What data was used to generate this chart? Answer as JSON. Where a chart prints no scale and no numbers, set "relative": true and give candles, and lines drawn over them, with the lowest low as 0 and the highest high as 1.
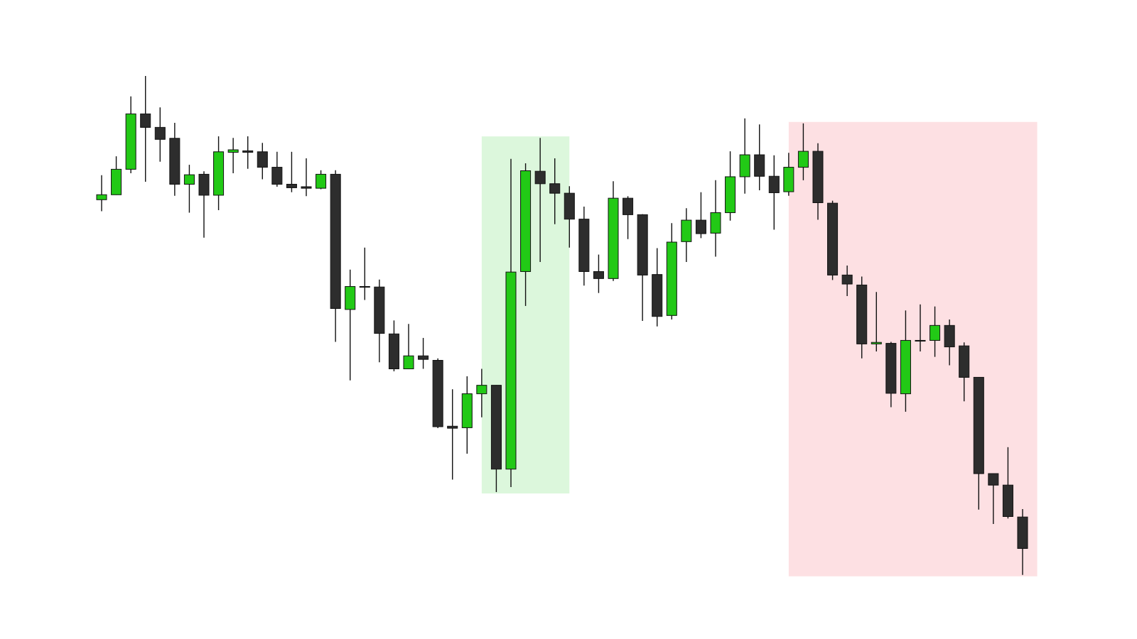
{
  "chart_data": {
    "type": "candlestick",
    "relative": true,
    "categories": [
      null,
      null,
      null,
      null,
      null,
      null,
      null,
      null,
      null,
      null,
      null,
      null,
      null,
      null,
      null,
      null,
      null,
      null,
      null,
      null,
      null,
      null,
      null,
      null,
      null,
      null,
      null,
      null,
      null,
      null,
      null,
      null,
      null,
      null,
      null,
      null,
      null,
      null,
      null,
      null,
      null,
      null,
      null,
      null,
      null,
      null,
      null,
      null,
      null,
      null,
      null,
      null,
      null,
      null,
      null,
      null,
      null,
      null,
      null,
      null,
      null,
      null,
      null,
      null
    ],
    "ohlc": [
      [
        0.752,
        0.801,
        0.729,
        0.762
      ],
      [
        0.762,
        0.839,
        0.762,
        0.813
      ],
      [
        0.813,
        0.959,
        0.805,
        0.924
      ],
      [
        0.924,
        1.0,
        0.788,
        0.897
      ],
      [
        0.897,
        0.937,
        0.828,
        0.873
      ],
      [
        0.875,
        0.906,
        0.76,
        0.783
      ],
      [
        0.783,
        0.822,
        0.726,
        0.802
      ],
      [
        0.803,
        0.809,
        0.676,
        0.761
      ],
      [
        0.761,
        0.879,
        0.731,
        0.848
      ],
      [
        0.847,
        0.876,
        0.805,
        0.852
      ],
      [
        0.85,
        0.879,
        0.814,
        0.847
      ],
      [
        0.848,
        0.866,
        0.793,
        0.817
      ],
      [
        0.817,
        0.848,
        0.778,
        0.783
      ],
      [
        0.783,
        0.848,
        0.767,
        0.776
      ],
      [
        0.778,
        0.835,
        0.759,
        0.775
      ],
      [
        0.775,
        0.811,
        0.773,
        0.803
      ],
      [
        0.803,
        0.811,
        0.467,
        0.534
      ],
      [
        0.532,
        0.612,
        0.39,
        0.578
      ],
      [
        0.578,
        0.656,
        0.551,
        0.578
      ],
      [
        0.577,
        0.592,
        0.426,
        0.484
      ],
      [
        0.483,
        0.51,
        0.408,
        0.413
      ],
      [
        0.413,
        0.503,
        0.413,
        0.439
      ],
      [
        0.439,
        0.475,
        0.413,
        0.432
      ],
      [
        0.43,
        0.434,
        0.294,
        0.297
      ],
      [
        0.298,
        0.372,
        0.191,
        0.294
      ],
      [
        0.295,
        0.398,
        0.243,
        0.363
      ],
      [
        0.363,
        0.413,
        0.316,
        0.38
      ],
      [
        0.38,
        0.38,
        0.166,
        0.212
      ],
      [
        0.212,
        0.834,
        0.176,
        0.607
      ],
      [
        0.608,
        0.825,
        0.539,
        0.81
      ],
      [
        0.809,
        0.876,
        0.627,
        0.784
      ],
      [
        0.784,
        0.835,
        0.703,
        0.765
      ],
      [
        0.765,
        0.779,
        0.656,
        0.713
      ],
      [
        0.713,
        0.738,
        0.58,
        0.608
      ],
      [
        0.608,
        0.642,
        0.565,
        0.594
      ],
      [
        0.594,
        0.789,
        0.589,
        0.755
      ],
      [
        0.755,
        0.759,
        0.673,
        0.722
      ],
      [
        0.722,
        0.723,
        0.509,
        0.601
      ],
      [
        0.602,
        0.655,
        0.498,
        0.518
      ],
      [
        0.52,
        0.705,
        0.512,
        0.667
      ],
      [
        0.668,
        0.735,
        0.627,
        0.711
      ],
      [
        0.711,
        0.767,
        0.675,
        0.684
      ],
      [
        0.685,
        0.791,
        0.638,
        0.726
      ],
      [
        0.726,
        0.849,
        0.71,
        0.798
      ],
      [
        0.798,
        0.915,
        0.764,
        0.842
      ],
      [
        0.842,
        0.903,
        0.771,
        0.799
      ],
      [
        0.799,
        0.841,
        0.692,
        0.766
      ],
      [
        0.768,
        0.846,
        0.76,
        0.817
      ],
      [
        0.817,
        0.905,
        0.791,
        0.849
      ],
      [
        0.849,
        0.865,
        0.712,
        0.746
      ],
      [
        0.745,
        0.75,
        0.591,
        0.601
      ],
      [
        0.601,
        0.62,
        0.559,
        0.583
      ],
      [
        0.581,
        0.598,
        0.434,
        0.463
      ],
      [
        0.463,
        0.567,
        0.448,
        0.466
      ],
      [
        0.464,
        0.467,
        0.336,
        0.364
      ],
      [
        0.363,
        0.53,
        0.327,
        0.47
      ],
      [
        0.47,
        0.542,
        0.448,
        0.47
      ],
      [
        0.47,
        0.538,
        0.437,
        0.5
      ],
      [
        0.5,
        0.512,
        0.42,
        0.457
      ],
      [
        0.459,
        0.466,
        0.348,
        0.396
      ],
      [
        0.396,
        0.396,
        0.131,
        0.203
      ],
      [
        0.203,
        0.203,
        0.102,
        0.18
      ],
      [
        0.18,
        0.256,
        0.113,
        0.117
      ],
      [
        0.116,
        0.132,
        0.0,
        0.053
      ]
    ],
    "colors": [
      "#22c916",
      "#22c916",
      "#22c916",
      "#2d2d2d",
      "#2d2d2d",
      "#2d2d2d",
      "#22c916",
      "#2d2d2d",
      "#22c916",
      "#22c916",
      "#2d2d2d",
      "#2d2d2d",
      "#2d2d2d",
      "#2d2d2d",
      "#2d2d2d",
      "#22c916",
      "#2d2d2d",
      "#22c916",
      "#2d2d2d",
      "#2d2d2d",
      "#2d2d2d",
      "#22c916",
      "#2d2d2d",
      "#2d2d2d",
      "#2d2d2d",
      "#22c916",
      "#22c916",
      "#2d2d2d",
      "#22c916",
      "#22c916",
      "#2d2d2d",
      "#2d2d2d",
      "#2d2d2d",
      "#2d2d2d",
      "#2d2d2d",
      "#22c916",
      "#2d2d2d",
      "#2d2d2d",
      "#2d2d2d",
      "#22c916",
      "#22c916",
      "#2d2d2d",
      "#22c916",
      "#22c916",
      "#22c916",
      "#2d2d2d",
      "#2d2d2d",
      "#22c916",
      "#22c916",
      "#2d2d2d",
      "#2d2d2d",
      "#2d2d2d",
      "#2d2d2d",
      "#22c916",
      "#2d2d2d",
      "#22c916",
      "#2d2d2d",
      "#22c916",
      "#2d2d2d",
      "#2d2d2d",
      "#2d2d2d",
      "#2d2d2d",
      "#2d2d2d",
      "#2d2d2d"
    ]
  }
}
